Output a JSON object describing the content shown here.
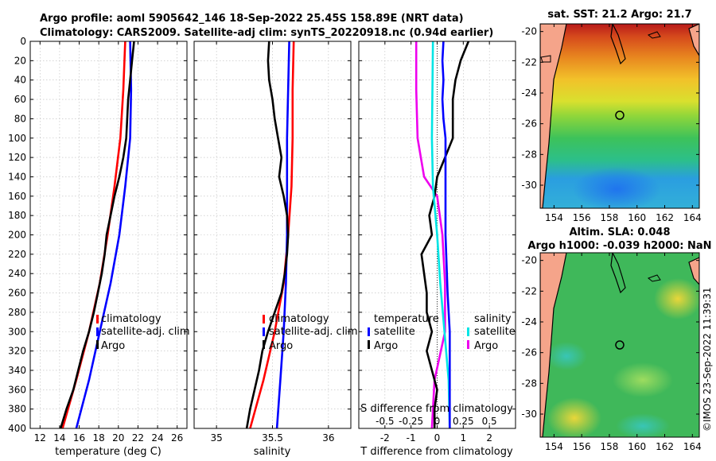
{
  "header": {
    "title_line1": "Argo profile: aoml 5905642_146 18-Sep-2022 25.45S 158.89E (NRT data)",
    "title_line2": "Climatology: CARS2009. Satellite-adj clim: synTS_20220918.nc (0.94d earlier)"
  },
  "credit": "©IMOS 23-Sep-2022 11:39:31",
  "colors": {
    "climatology": "#ff0000",
    "satellite": "#0000ff",
    "argo": "#000000",
    "temp_diff_sat": "#ee00ee",
    "sal_diff_sat": "#00e5e5",
    "grid": "#bbbbbb"
  },
  "chart_data": [
    {
      "id": "temperature",
      "type": "line",
      "xlabel": "temperature (deg C)",
      "ylabel": "",
      "xlim": [
        11,
        27
      ],
      "ylim": [
        400,
        0
      ],
      "xticks": [
        "12",
        "14",
        "16",
        "18",
        "20",
        "22",
        "24",
        "26"
      ],
      "yticks": [
        "0",
        "20",
        "40",
        "60",
        "80",
        "100",
        "120",
        "140",
        "160",
        "180",
        "200",
        "220",
        "240",
        "260",
        "280",
        "300",
        "320",
        "340",
        "360",
        "380",
        "400"
      ],
      "grid": true,
      "legend": {
        "position": "lower-right",
        "entries": [
          "climatology",
          "satellite-adj. clim",
          "Argo"
        ]
      },
      "series": [
        {
          "name": "climatology",
          "color": "#ff0000",
          "depth": [
            0,
            50,
            100,
            150,
            200,
            250,
            300,
            350,
            400
          ],
          "values": [
            20.7,
            20.5,
            20.2,
            19.6,
            18.9,
            18.1,
            17.0,
            15.7,
            14.3
          ]
        },
        {
          "name": "satellite-adj. clim",
          "color": "#0000ff",
          "depth": [
            0,
            50,
            100,
            150,
            200,
            250,
            300,
            350,
            400
          ],
          "values": [
            21.2,
            21.3,
            21.2,
            20.7,
            20.1,
            19.2,
            18.1,
            17.0,
            15.7
          ]
        },
        {
          "name": "Argo",
          "color": "#000000",
          "depth": [
            0,
            20,
            40,
            60,
            80,
            100,
            120,
            140,
            160,
            180,
            200,
            220,
            240,
            260,
            280,
            300,
            320,
            340,
            360,
            380,
            400
          ],
          "values": [
            21.6,
            21.4,
            21.2,
            21.0,
            20.9,
            20.8,
            20.5,
            20.1,
            19.6,
            19.2,
            18.8,
            18.6,
            18.3,
            17.9,
            17.5,
            17.0,
            16.4,
            15.9,
            15.4,
            14.7,
            14.1
          ]
        }
      ]
    },
    {
      "id": "salinity",
      "type": "line",
      "xlabel": "salinity",
      "ylabel": "",
      "xlim": [
        34.8,
        36.2
      ],
      "ylim": [
        400,
        0
      ],
      "xticks": [
        "35",
        "35.5",
        "36"
      ],
      "grid": true,
      "legend": {
        "position": "lower-right",
        "entries": [
          "climatology",
          "satellite-adj. clim",
          "Argo"
        ]
      },
      "series": [
        {
          "name": "climatology",
          "color": "#ff0000",
          "depth": [
            0,
            50,
            100,
            150,
            200,
            250,
            300,
            350,
            400
          ],
          "values": [
            35.69,
            35.68,
            35.68,
            35.67,
            35.64,
            35.6,
            35.52,
            35.42,
            35.3
          ]
        },
        {
          "name": "satellite-adj. clim",
          "color": "#0000ff",
          "depth": [
            0,
            50,
            100,
            150,
            200,
            250,
            300,
            350,
            400
          ],
          "values": [
            35.65,
            35.64,
            35.63,
            35.63,
            35.63,
            35.62,
            35.6,
            35.57,
            35.54
          ]
        },
        {
          "name": "Argo",
          "color": "#000000",
          "depth": [
            0,
            20,
            40,
            60,
            80,
            100,
            120,
            140,
            160,
            180,
            200,
            220,
            240,
            260,
            280,
            300,
            320,
            340,
            360,
            380,
            400
          ],
          "values": [
            35.47,
            35.46,
            35.47,
            35.5,
            35.52,
            35.55,
            35.58,
            35.56,
            35.6,
            35.63,
            35.64,
            35.63,
            35.61,
            35.58,
            35.52,
            35.46,
            35.41,
            35.38,
            35.34,
            35.3,
            35.27
          ]
        }
      ]
    },
    {
      "id": "differences",
      "type": "line",
      "xlabel": "T difference from climatology",
      "xlabel_top": "S difference from climatology",
      "xlim": [
        -3,
        3
      ],
      "xlim_s": [
        -0.75,
        0.75
      ],
      "ylim": [
        400,
        0
      ],
      "xticks": [
        "-2",
        "-1",
        "0",
        "1",
        "2"
      ],
      "xticks_s": [
        "-0.5",
        "-0.25",
        "0",
        "0.25",
        "0.5"
      ],
      "grid": true,
      "legend_t": {
        "heading": "temperature",
        "entries": [
          "satellite",
          "Argo"
        ]
      },
      "legend_s": {
        "heading": "salinity",
        "entries": [
          "satellite",
          "Argo"
        ]
      },
      "series": [
        {
          "name": "temperature satellite",
          "color": "#ee00ee",
          "axis": "T",
          "depth": [
            0,
            50,
            100,
            140,
            160,
            200,
            250,
            300,
            350,
            400
          ],
          "values": [
            -0.8,
            -0.8,
            -0.75,
            -0.5,
            0.0,
            0.2,
            0.3,
            0.3,
            -0.1,
            -0.2
          ]
        },
        {
          "name": "temperature Argo",
          "color": "#000000",
          "axis": "T",
          "depth": [
            0,
            20,
            40,
            60,
            80,
            100,
            120,
            140,
            160,
            180,
            200,
            220,
            240,
            260,
            280,
            300,
            320,
            340,
            360,
            380,
            400
          ],
          "values": [
            1.2,
            0.9,
            0.7,
            0.6,
            0.6,
            0.6,
            0.3,
            0.0,
            -0.1,
            -0.3,
            -0.2,
            -0.6,
            -0.5,
            -0.4,
            -0.4,
            -0.2,
            -0.4,
            -0.2,
            0.0,
            -0.1,
            -0.1
          ]
        },
        {
          "name": "salinity satellite",
          "color": "#00e5e5",
          "axis": "S",
          "depth": [
            0,
            100,
            150,
            200,
            250,
            300,
            350,
            400
          ],
          "values": [
            -0.04,
            -0.05,
            -0.04,
            0.0,
            0.03,
            0.07,
            0.11,
            0.12
          ]
        },
        {
          "name": "salinity Argo",
          "color": "#0000ff",
          "axis": "S",
          "depth": [
            0,
            20,
            40,
            60,
            80,
            100,
            120,
            160,
            200,
            260,
            300,
            360,
            400
          ],
          "values": [
            0.06,
            0.05,
            0.06,
            0.05,
            0.06,
            0.08,
            0.08,
            0.08,
            0.08,
            0.1,
            0.12,
            0.12,
            0.12
          ]
        }
      ]
    }
  ],
  "maps": [
    {
      "id": "sst",
      "title": "sat. SST: 21.2 Argo: 21.7",
      "xticks": [
        "154",
        "156",
        "158",
        "160",
        "162",
        "164"
      ],
      "yticks": [
        "-20",
        "-22",
        "-24",
        "-26",
        "-28",
        "-30"
      ],
      "float_lon": 158.89,
      "float_lat": -25.45
    },
    {
      "id": "sla",
      "title_line1": "Altim. SLA: 0.048",
      "title_line2": "Argo h1000: -0.039 h2000: NaN",
      "xticks": [
        "154",
        "156",
        "158",
        "160",
        "162",
        "164"
      ],
      "yticks": [
        "-20",
        "-22",
        "-24",
        "-26",
        "-28",
        "-30"
      ],
      "float_lon": 158.89,
      "float_lat": -25.45
    }
  ],
  "legend_text": {
    "climatology": "climatology",
    "satellite_adj": "satellite-adj. clim",
    "argo": "Argo",
    "temperature": "temperature",
    "salinity": "salinity",
    "satellite": "satellite"
  }
}
